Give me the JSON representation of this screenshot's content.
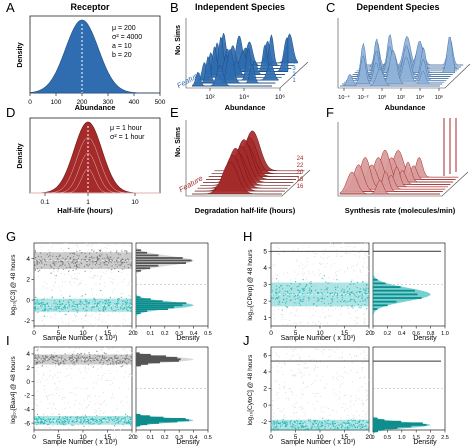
{
  "colors": {
    "blue": "#2f6db0",
    "blue_light": "#8fb2d9",
    "red": "#a52a2a",
    "red_light": "#d99a9a",
    "teal": "#19b3b3",
    "gray_cloud": "#b0b0b0",
    "gray_dark": "#555555"
  },
  "panels": {
    "A": {
      "letter": "A",
      "title": "Receptor",
      "ylabel": "Density",
      "xlabel": "Abundance",
      "x_ticks": [
        "0",
        "100",
        "200",
        "300",
        "400",
        "500"
      ],
      "params": [
        "μ = 200",
        "σ² = 4000",
        "a = 10",
        "b = 20"
      ]
    },
    "B": {
      "letter": "B",
      "title": "Independent Species",
      "ylabel": "No. Sims",
      "xlabel": "Abundance",
      "depth_label": "Feature",
      "x_ticks": [
        "10²",
        "10⁴",
        "10⁶"
      ],
      "depth_ticks": [
        "1",
        "2",
        "3",
        "4"
      ]
    },
    "C": {
      "letter": "C",
      "title": "Dependent Species",
      "xlabel": "Abundance",
      "x_ticks": [
        "10⁻⁴",
        "10⁻²",
        "10⁰",
        "10²",
        "10⁴",
        "10⁶"
      ]
    },
    "D": {
      "letter": "D",
      "ylabel": "Density",
      "xlabel": "Half-life (hours)",
      "x_ticks": [
        "0.1",
        "1",
        "10"
      ],
      "params": [
        "μ = 1 hour",
        "σ² = 1 hour"
      ]
    },
    "E": {
      "letter": "E",
      "ylabel": "No. Sims",
      "xlabel": "Degradation half-life (hours)",
      "depth_label": "Feature",
      "depth_ticks": [
        "24",
        "22",
        "20",
        "18",
        "16"
      ]
    },
    "F": {
      "letter": "F",
      "xlabel": "Synthesis rate (molecules/min)"
    },
    "G": {
      "letter": "G",
      "ylabel": "log₁₀[C3] @ 48 hours",
      "xlabel": "Sample Number ( x 10³)",
      "x_ticks": [
        "0",
        "5",
        "10",
        "15",
        "20"
      ],
      "y_ticks": [
        "-2",
        "0",
        "2",
        "4"
      ],
      "density_label": "Density",
      "density_ticks": [
        "0",
        "0.1",
        "0.2",
        "0.3",
        "0.4",
        "0.5"
      ]
    },
    "H": {
      "letter": "H",
      "ylabel": "log₁₀[CPerp] @ 48 hours",
      "xlabel": "Sample Number ( x 10³)",
      "x_ticks": [
        "0",
        "5",
        "10",
        "15",
        "20"
      ],
      "y_ticks": [
        "1",
        "2",
        "3",
        "4",
        "5"
      ],
      "density_label": "Density",
      "density_ticks": [
        "0",
        "0.2",
        "0.4",
        "0.6",
        "0.8",
        "1.0"
      ]
    },
    "I": {
      "letter": "I",
      "ylabel": "log₁₀[Bax4] @ 48 hours",
      "xlabel": "Sample Number ( x 10³)",
      "x_ticks": [
        "0",
        "5",
        "10",
        "15",
        "20"
      ],
      "y_ticks": [
        "-6",
        "-4",
        "-2",
        "0",
        "2",
        "4"
      ],
      "density_label": "Density",
      "density_ticks": [
        "0",
        "0.1",
        "0.2",
        "0.3",
        "0.4",
        "0.5"
      ]
    },
    "J": {
      "letter": "J",
      "ylabel": "log₁₀[CytoC] @ 48 hours",
      "xlabel": "Sample Number ( x 10³)",
      "x_ticks": [
        "0",
        "5",
        "10",
        "15",
        "20"
      ],
      "y_ticks": [
        "-2",
        "0",
        "2",
        "4",
        "6"
      ],
      "density_label": "Density",
      "density_ticks": [
        "0",
        "0.5",
        "1.0",
        "1.5",
        "2.0",
        "2.5"
      ]
    }
  },
  "chart_data": [
    {
      "panel": "A",
      "type": "area",
      "distribution": "density of receptor abundance",
      "mean": 200,
      "variance": 4000,
      "xlim": [
        0,
        500
      ]
    },
    {
      "panel": "B",
      "type": "area",
      "layout": "ridgeline",
      "depth_values": [
        1,
        2,
        3,
        4
      ]
    },
    {
      "panel": "C",
      "type": "area",
      "layout": "ridgeline",
      "xlim_log10": [
        -4,
        6
      ]
    },
    {
      "panel": "D",
      "type": "area",
      "distribution": "density of half-life",
      "mean": 1,
      "variance": 1,
      "x_scale": "log",
      "xlim": [
        0.1,
        10
      ]
    },
    {
      "panel": "E",
      "type": "area",
      "layout": "ridgeline",
      "depth_values": [
        16,
        18,
        20,
        22,
        24
      ]
    },
    {
      "panel": "F",
      "type": "area",
      "layout": "ridgeline"
    },
    {
      "panel": "G",
      "type": "scatter",
      "xlim": [
        0,
        20
      ],
      "ylim": [
        -2.5,
        5.5
      ],
      "clusters": [
        {
          "center": 3.8,
          "spread": 0.45,
          "color": "gray"
        },
        {
          "center": -0.5,
          "spread": 0.35,
          "color": "teal"
        }
      ],
      "density_xlim": [
        0,
        0.5
      ]
    },
    {
      "panel": "H",
      "type": "scatter",
      "xlim": [
        0,
        20
      ],
      "ylim": [
        0.5,
        5.5
      ],
      "clusters": [
        {
          "center": 2.4,
          "spread": 0.4,
          "color": "teal"
        }
      ],
      "reference_line": 5.0,
      "density_xlim": [
        0,
        1.0
      ]
    },
    {
      "panel": "I",
      "type": "scatter",
      "xlim": [
        0,
        20
      ],
      "ylim": [
        -7,
        5
      ],
      "clusters": [
        {
          "center": 3.2,
          "spread": 0.4,
          "color": "gray"
        },
        {
          "center": -5.6,
          "spread": 0.35,
          "color": "teal"
        }
      ],
      "density_xlim": [
        0,
        0.5
      ]
    },
    {
      "panel": "J",
      "type": "scatter",
      "xlim": [
        0,
        20
      ],
      "ylim": [
        -3,
        7
      ],
      "clusters": [
        {
          "center": -2.4,
          "spread": 0.35,
          "color": "teal"
        }
      ],
      "reference_line": 5.3,
      "density_xlim": [
        0,
        2.5
      ]
    }
  ]
}
